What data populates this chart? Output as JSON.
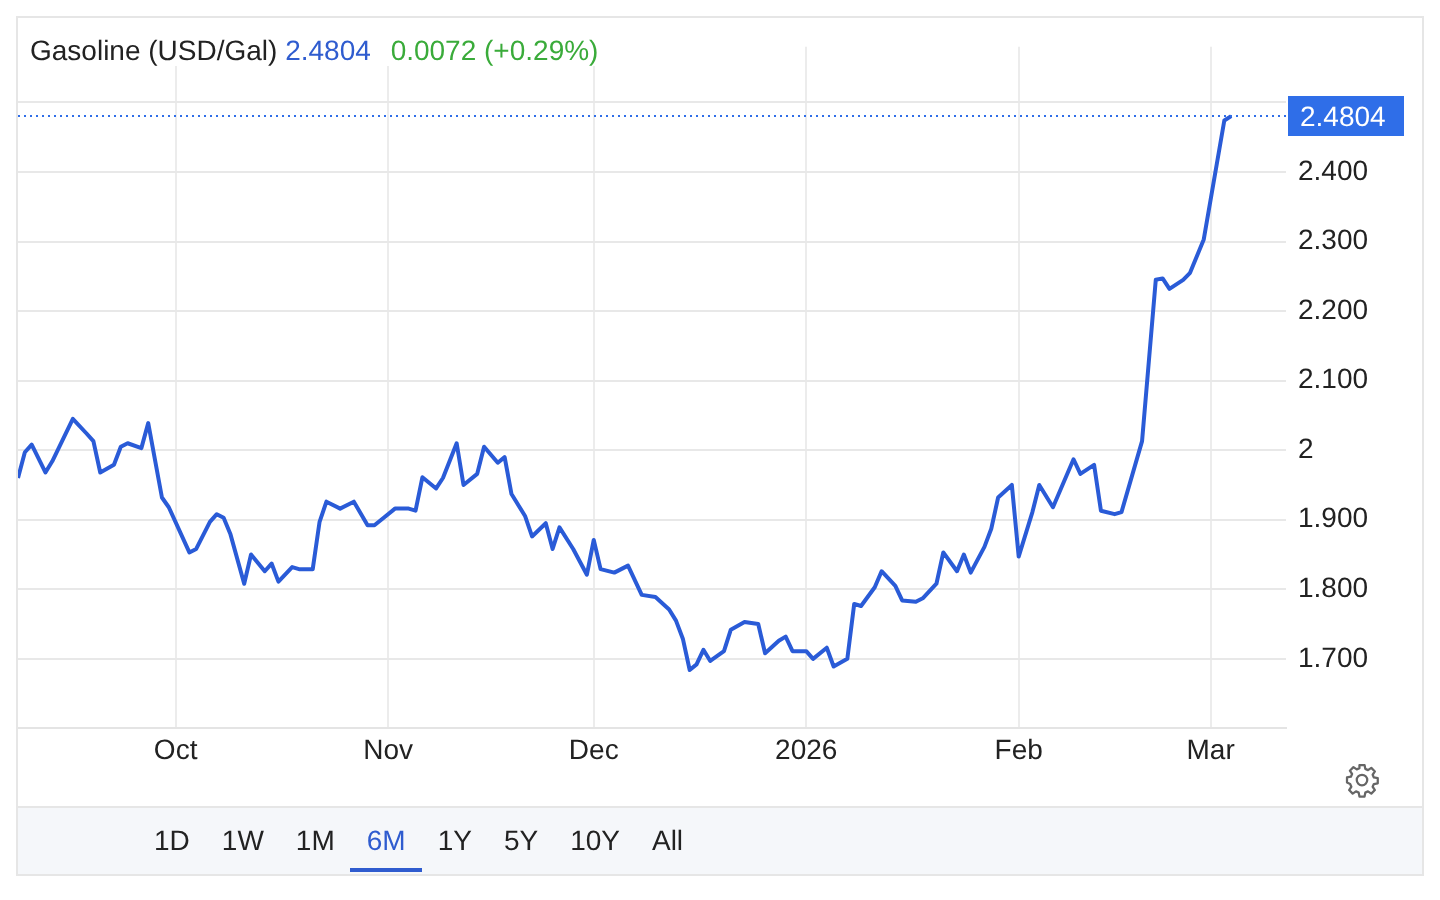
{
  "chart_data": {
    "type": "line",
    "title": "Gasoline (USD/Gal)",
    "annotations": [
      "2.4804",
      "0.0072 (+0.29%)",
      "1D",
      "1W",
      "1M",
      "6M",
      "1Y",
      "5Y",
      "10Y",
      "All"
    ],
    "x": [
      "2025-09-08",
      "2025-09-09",
      "2025-09-10",
      "2025-09-12",
      "2025-09-13",
      "2025-09-16",
      "2025-09-18",
      "2025-09-19",
      "2025-09-20",
      "2025-09-22",
      "2025-09-23",
      "2025-09-24",
      "2025-09-26",
      "2025-09-27",
      "2025-09-29",
      "2025-09-30",
      "2025-10-03",
      "2025-10-04",
      "2025-10-06",
      "2025-10-07",
      "2025-10-08",
      "2025-10-09",
      "2025-10-11",
      "2025-10-12",
      "2025-10-14",
      "2025-10-15",
      "2025-10-16",
      "2025-10-18",
      "2025-10-19",
      "2025-10-21",
      "2025-10-22",
      "2025-10-23",
      "2025-10-25",
      "2025-10-27",
      "2025-10-29",
      "2025-10-30",
      "2025-10-31",
      "2025-11-02",
      "2025-11-04",
      "2025-11-05",
      "2025-11-06",
      "2025-11-08",
      "2025-11-09",
      "2025-11-11",
      "2025-11-12",
      "2025-11-14",
      "2025-11-15",
      "2025-11-17",
      "2025-11-18",
      "2025-11-19",
      "2025-11-21",
      "2025-11-22",
      "2025-11-24",
      "2025-11-25",
      "2025-11-26",
      "2025-11-28",
      "2025-11-30",
      "2025-12-01",
      "2025-12-02",
      "2025-12-04",
      "2025-12-06",
      "2025-12-08",
      "2025-12-10",
      "2025-12-12",
      "2025-12-13",
      "2025-12-14",
      "2025-12-15",
      "2025-12-16",
      "2025-12-17",
      "2025-12-18",
      "2025-12-20",
      "2025-12-21",
      "2025-12-23",
      "2025-12-25",
      "2025-12-26",
      "2025-12-28",
      "2025-12-29",
      "2025-12-30",
      "2026-01-01",
      "2026-01-02",
      "2026-01-04",
      "2026-01-05",
      "2026-01-07",
      "2026-01-08",
      "2026-01-09",
      "2026-01-11",
      "2026-01-12",
      "2026-01-14",
      "2026-01-15",
      "2026-01-17",
      "2026-01-18",
      "2026-01-20",
      "2026-01-21",
      "2026-01-23",
      "2026-01-24",
      "2026-01-25",
      "2026-01-27",
      "2026-01-28",
      "2026-01-29",
      "2026-01-31",
      "2026-02-01",
      "2026-02-03",
      "2026-02-04",
      "2026-02-06",
      "2026-02-09",
      "2026-02-10",
      "2026-02-12",
      "2026-02-13",
      "2026-02-15",
      "2026-02-16",
      "2026-02-19",
      "2026-02-21",
      "2026-02-22",
      "2026-02-23",
      "2026-02-25",
      "2026-02-26",
      "2026-02-28",
      "2026-03-03",
      "2026-03-04"
    ],
    "series": [
      {
        "color": "#2a5bd7",
        "values": [
          1.96,
          1.997,
          2.008,
          1.968,
          1.984,
          2.045,
          2.024,
          2.013,
          1.968,
          1.979,
          2.005,
          2.01,
          2.003,
          2.039,
          1.932,
          1.918,
          1.853,
          1.858,
          1.897,
          1.908,
          1.903,
          1.879,
          1.808,
          1.85,
          1.826,
          1.837,
          1.811,
          1.832,
          1.829,
          1.829,
          1.897,
          1.926,
          1.916,
          1.926,
          1.892,
          1.892,
          1.9,
          1.916,
          1.916,
          1.913,
          1.961,
          1.945,
          1.96,
          2.01,
          1.95,
          1.966,
          2.005,
          1.982,
          1.99,
          1.937,
          1.905,
          1.876,
          1.895,
          1.858,
          1.889,
          1.858,
          1.821,
          1.871,
          1.829,
          1.824,
          1.834,
          1.792,
          1.789,
          1.771,
          1.755,
          1.729,
          1.684,
          1.692,
          1.713,
          1.697,
          1.711,
          1.742,
          1.753,
          1.75,
          1.708,
          1.726,
          1.732,
          1.711,
          1.711,
          1.7,
          1.716,
          1.689,
          1.7,
          1.779,
          1.776,
          1.803,
          1.826,
          1.805,
          1.784,
          1.782,
          1.787,
          1.808,
          1.853,
          1.826,
          1.85,
          1.824,
          1.861,
          1.887,
          1.932,
          1.95,
          1.847,
          1.911,
          1.95,
          1.918,
          1.987,
          1.966,
          1.979,
          1.913,
          1.908,
          1.911,
          2.013,
          2.245,
          2.247,
          2.232,
          2.245,
          2.255,
          2.303,
          2.474,
          2.4804
        ]
      }
    ],
    "xlim": [
      "2025-09-08",
      "2026-03-12"
    ],
    "xticks": [
      {
        "value": "2025-10-01",
        "label": "Oct"
      },
      {
        "value": "2025-11-01",
        "label": "Nov"
      },
      {
        "value": "2025-12-01",
        "label": "Dec"
      },
      {
        "value": "2026-01-01",
        "label": "2026"
      },
      {
        "value": "2026-02-01",
        "label": "Feb"
      },
      {
        "value": "2026-03-01",
        "label": "Mar"
      }
    ],
    "ylim": [
      1.6,
      2.58
    ],
    "yticks": [
      {
        "value": 1.7,
        "label": "1.700"
      },
      {
        "value": 1.8,
        "label": "1.800"
      },
      {
        "value": 1.9,
        "label": "1.900"
      },
      2,
      {
        "value": 2.1,
        "label": "2.100"
      },
      {
        "value": 2.2,
        "label": "2.200"
      },
      {
        "value": 2.3,
        "label": "2.300"
      },
      {
        "value": 2.4,
        "label": "2.400"
      },
      {
        "value": 2.5,
        "label": null
      }
    ],
    "ref_lines": [
      {
        "axis": "y",
        "value": 2.4804,
        "label": "2.4804",
        "color": "#2f6ee8",
        "line_style": "dotted"
      }
    ],
    "grid": true
  }
}
